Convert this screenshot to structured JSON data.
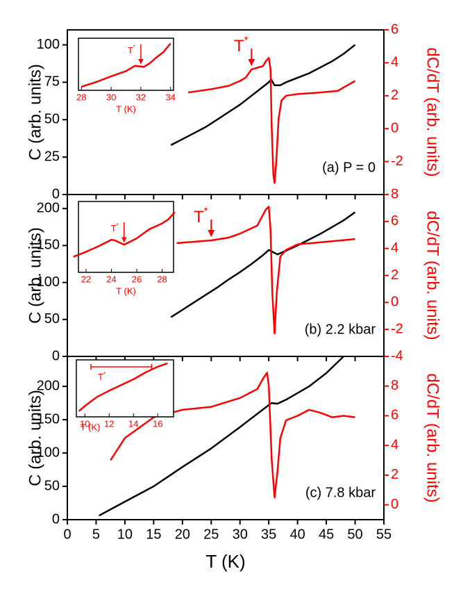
{
  "chart_data": [
    {
      "type": "line",
      "xlim": [
        0,
        55
      ],
      "ylim": [
        0,
        110
      ],
      "yticks": [
        0,
        25,
        50,
        75,
        100
      ],
      "y2lim": [
        -4,
        6
      ],
      "y2ticks": [
        -2,
        0,
        2,
        4,
        6
      ],
      "ylabel": "C (arb. units)",
      "y2label": "dC/dT (arb. units)",
      "panel_label": "(a) P = 0",
      "series": [
        {
          "color": "#000000",
          "axis": "y",
          "x": [
            18,
            20,
            22,
            24,
            26,
            28,
            30,
            32,
            34,
            35,
            35.4,
            36,
            37,
            38,
            40,
            42,
            44,
            46,
            48,
            50
          ],
          "values": [
            33,
            37,
            41,
            45,
            50,
            55,
            60,
            66,
            72,
            75,
            77,
            73,
            73,
            75,
            78,
            81,
            85,
            89,
            94,
            100
          ]
        },
        {
          "color": "#ff0000",
          "axis": "y2",
          "x": [
            21,
            25,
            28,
            30,
            31,
            32,
            33,
            34,
            34.5,
            35,
            35.3,
            35.5,
            35.8,
            36,
            36.3,
            36.7,
            37.2,
            38,
            40,
            44,
            47,
            48.5,
            50
          ],
          "values": [
            2.2,
            2.4,
            2.6,
            2.9,
            3.1,
            3.6,
            3.7,
            3.8,
            4.1,
            4.3,
            3.6,
            0.2,
            -2.8,
            -3.3,
            -2,
            0.6,
            1.7,
            2,
            2.1,
            2.2,
            2.3,
            2.6,
            2.9
          ]
        }
      ],
      "annotation": {
        "text": "T",
        "sup": "*",
        "x": 32
      },
      "inset": {
        "type": "line",
        "xlim": [
          27.8,
          34.2
        ],
        "xticks": [
          28,
          30,
          32,
          34
        ],
        "ylim": [
          0,
          1
        ],
        "xlabel": "T (K)",
        "series": [
          {
            "color": "#ff0000",
            "x": [
              28,
              29,
              30,
              31,
              31.6,
              32.2,
              32.6,
              33,
              33.5,
              34
            ],
            "values": [
              0.07,
              0.16,
              0.27,
              0.37,
              0.47,
              0.45,
              0.52,
              0.62,
              0.73,
              0.9
            ]
          }
        ],
        "annotation": {
          "text": "T",
          "sup": "*",
          "x": 32
        }
      }
    },
    {
      "type": "line",
      "xlim": [
        0,
        55
      ],
      "ylim": [
        0,
        219
      ],
      "yticks": [
        0,
        50,
        100,
        150,
        200
      ],
      "y2lim": [
        -4,
        8
      ],
      "y2ticks": [
        -4,
        -2,
        0,
        2,
        4,
        6,
        8
      ],
      "ylabel": "C (arb. units)",
      "y2label": "dC/dT (arb. units)",
      "panel_label": "(b) 2.2 kbar",
      "series": [
        {
          "color": "#000000",
          "axis": "y",
          "x": [
            18,
            20,
            22,
            24,
            26,
            28,
            30,
            32,
            34,
            35,
            35.5,
            36.5,
            38,
            40,
            42,
            44,
            46,
            48,
            50
          ],
          "values": [
            53,
            63,
            73,
            83,
            93,
            104,
            114,
            125,
            137,
            144,
            142,
            138,
            143,
            150,
            158,
            166,
            175,
            184,
            195
          ]
        },
        {
          "color": "#ff0000",
          "axis": "y2",
          "x": [
            19,
            22,
            25,
            28,
            30,
            33,
            34.5,
            35,
            35.3,
            35.6,
            36,
            36.4,
            37,
            38,
            40,
            45,
            50
          ],
          "values": [
            4.4,
            4.5,
            4.6,
            4.8,
            5.1,
            5.7,
            6.9,
            7.1,
            5.4,
            0.8,
            -2.3,
            0.8,
            3.4,
            3.9,
            4.3,
            4.5,
            4.7
          ]
        }
      ],
      "annotation": {
        "text": "T",
        "sup": "*",
        "x": 25
      },
      "inset": {
        "type": "line",
        "xlim": [
          21.4,
          28.9
        ],
        "xticks": [
          22,
          24,
          26,
          28
        ],
        "ylim": [
          0,
          1
        ],
        "xlabel": "T (K)",
        "series": [
          {
            "color": "#ff0000",
            "x": [
              21,
              22,
              23,
              24,
              24.3,
              25,
              26,
              27,
              28,
              28.5,
              29
            ],
            "values": [
              0.22,
              0.29,
              0.37,
              0.46,
              0.45,
              0.39,
              0.48,
              0.61,
              0.69,
              0.75,
              0.85
            ]
          }
        ],
        "annotation": {
          "text": "T",
          "sup": "*",
          "x": 25
        }
      }
    },
    {
      "type": "line",
      "xlim": [
        0,
        55
      ],
      "ylim": [
        0,
        245
      ],
      "yticks": [
        0,
        50,
        100,
        150,
        200
      ],
      "y2lim": [
        -1,
        10
      ],
      "y2ticks": [
        0,
        2,
        4,
        6,
        8
      ],
      "xticks": [
        0,
        5,
        10,
        15,
        20,
        25,
        30,
        35,
        40,
        45,
        50,
        55
      ],
      "xlabel": "T (K)",
      "ylabel": "C (arb. units)",
      "y2label": "dC/dT (arb. units)",
      "panel_label": "(c) 7.8 kbar",
      "series": [
        {
          "color": "#000000",
          "axis": "y",
          "x": [
            5.5,
            10,
            15,
            20,
            25,
            30,
            35,
            35.5,
            36.5,
            38,
            40,
            42,
            45,
            48
          ],
          "values": [
            6,
            27,
            50,
            79,
            107,
            139,
            172,
            175,
            174,
            180,
            190,
            200,
            220,
            245
          ]
        },
        {
          "color": "#ff0000",
          "axis": "y2",
          "x": [
            7.5,
            10,
            15,
            20,
            25,
            30,
            33,
            34,
            34.7,
            35,
            35.5,
            36,
            36.5,
            37,
            38,
            40,
            42,
            44,
            46,
            48,
            50
          ],
          "values": [
            3,
            4.5,
            5.9,
            6.4,
            6.6,
            7.2,
            7.8,
            8.5,
            8.9,
            8,
            3.1,
            0.5,
            2.2,
            4.5,
            5.7,
            6,
            6.4,
            6.2,
            5.9,
            6,
            5.9
          ]
        }
      ],
      "inset": {
        "type": "line",
        "xlim": [
          9.3,
          17.3
        ],
        "xticks": [
          10,
          12,
          14,
          16
        ],
        "ylim": [
          0,
          1
        ],
        "xlabel": "T (K)",
        "series": [
          {
            "color": "#ff0000",
            "x": [
              9.5,
              10,
              11,
              12,
              13,
              14,
              15,
              16,
              16.8
            ],
            "values": [
              0.1,
              0.19,
              0.35,
              0.46,
              0.56,
              0.66,
              0.78,
              0.88,
              0.94
            ]
          }
        ],
        "range": {
          "text": "T",
          "sup": "*",
          "x": [
            10.5,
            15.5
          ]
        }
      }
    }
  ]
}
